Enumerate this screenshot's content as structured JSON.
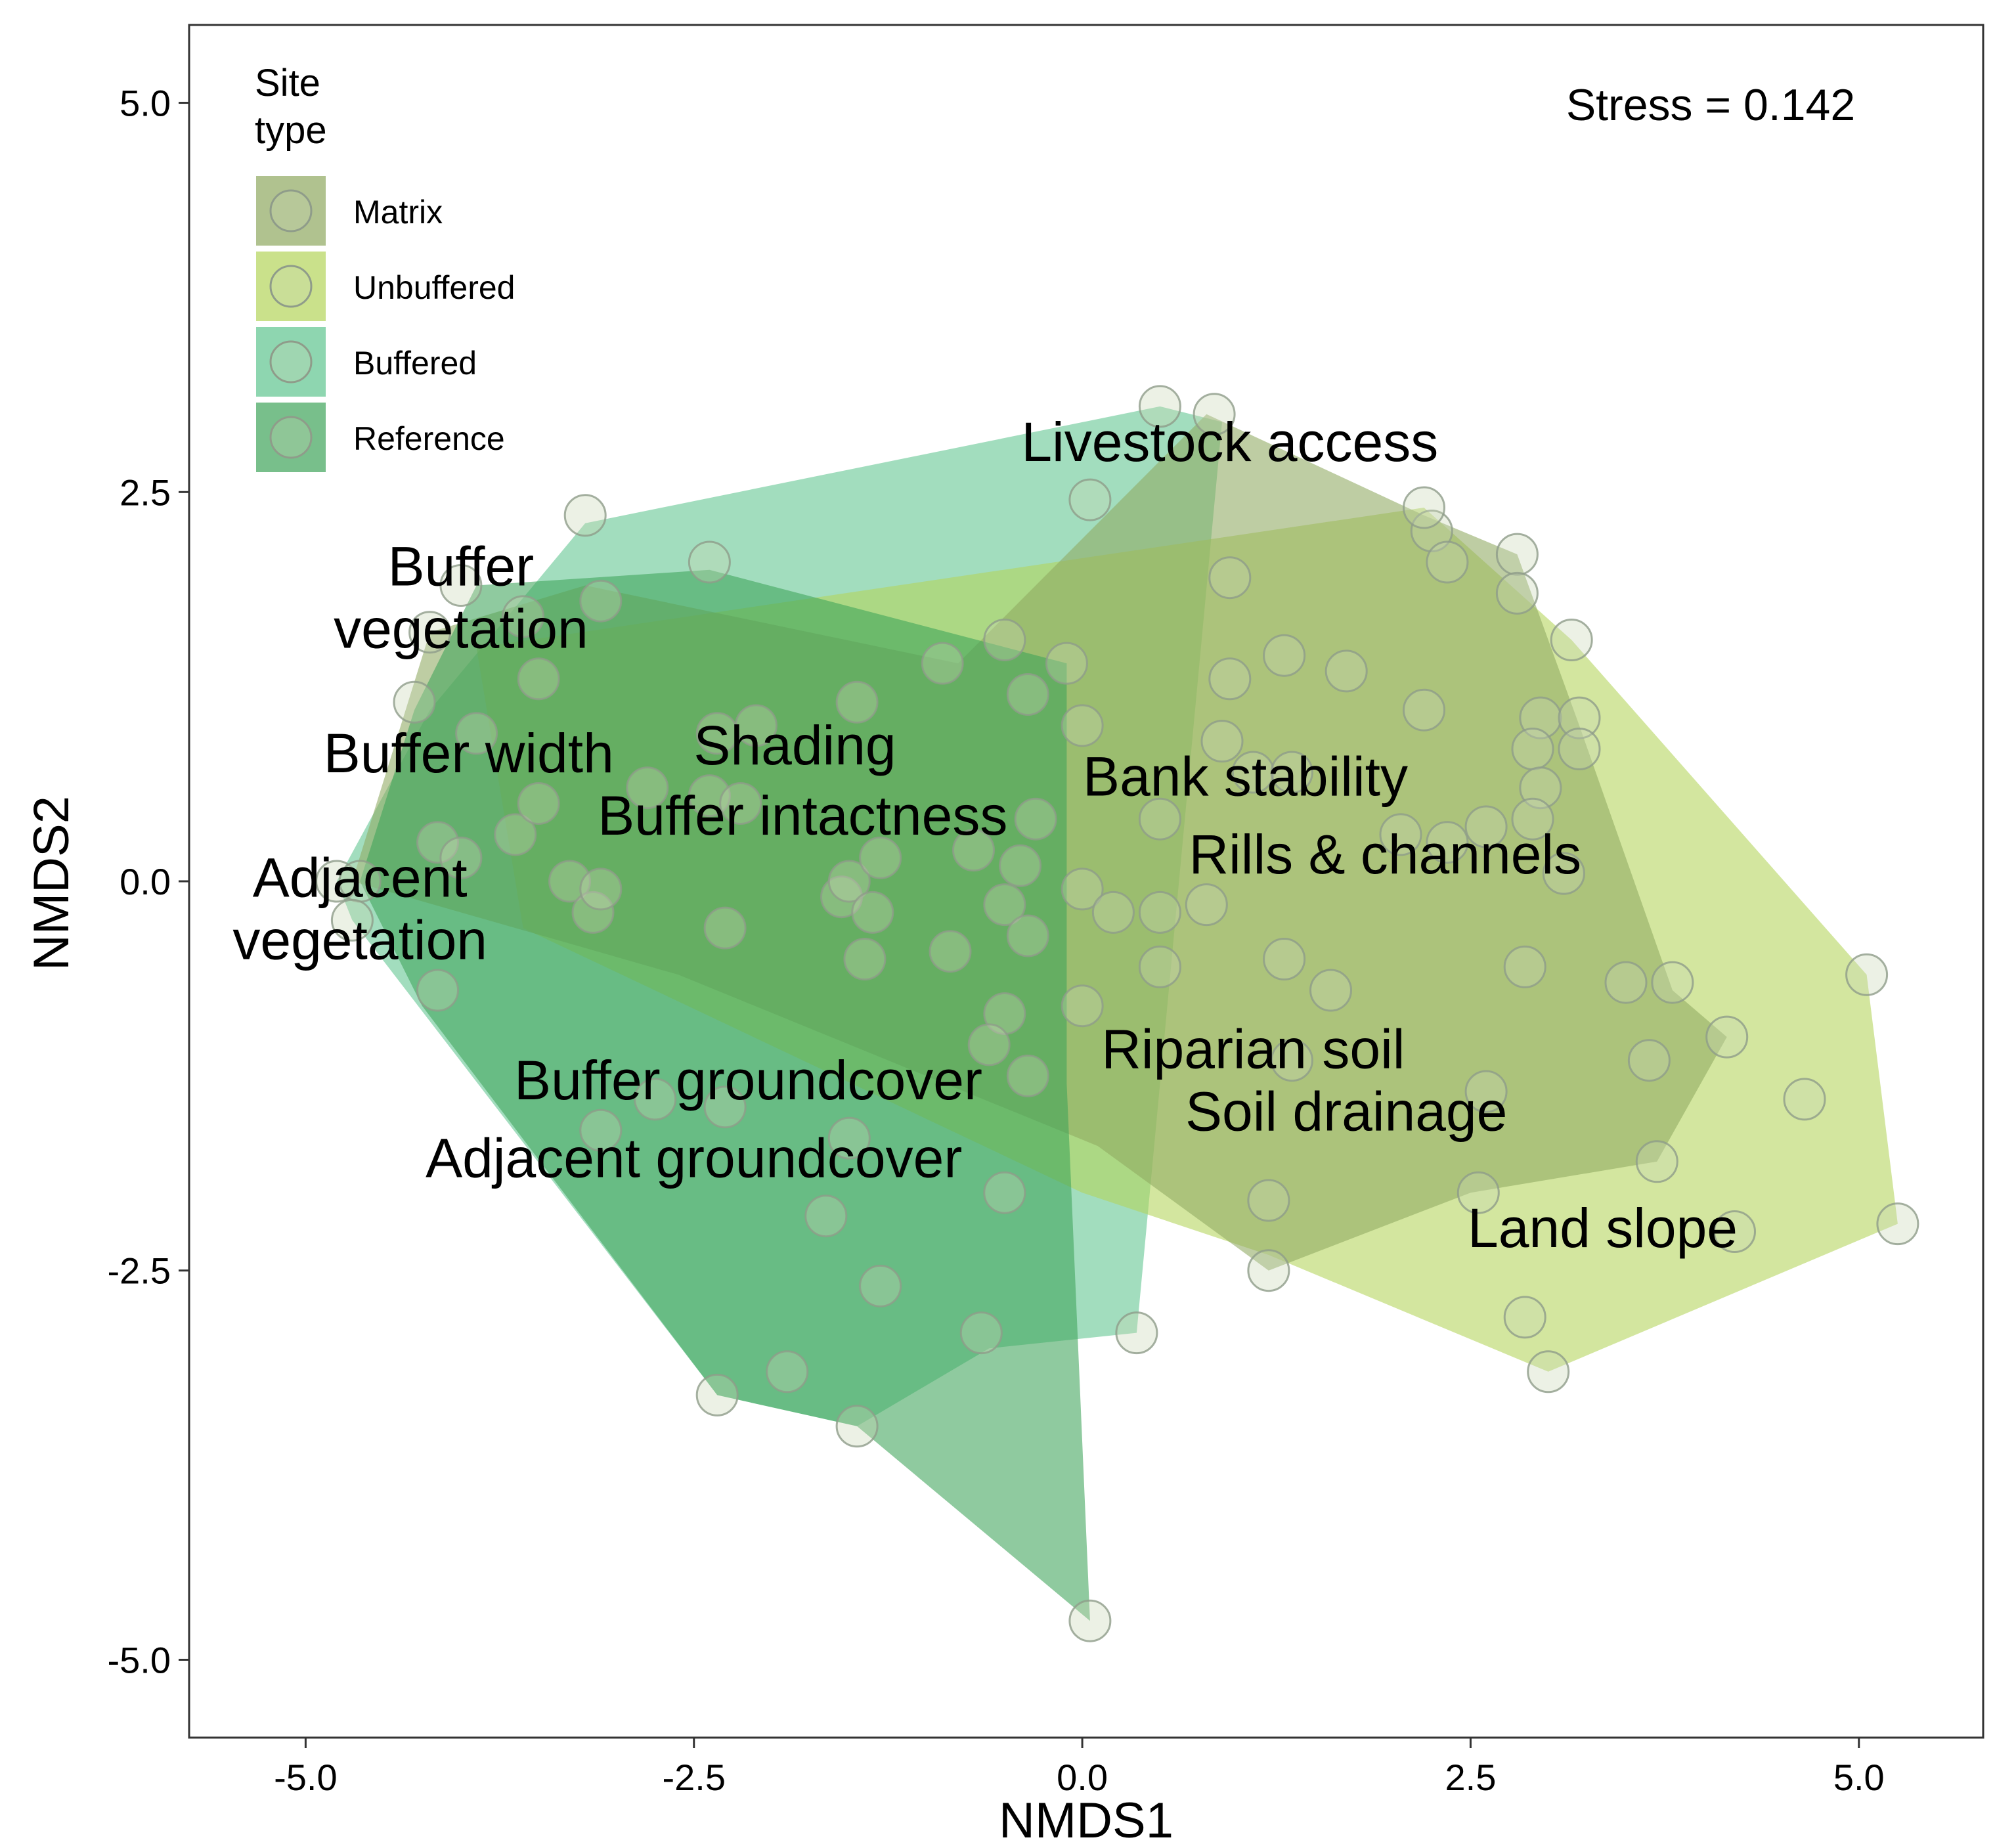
{
  "chart_data": {
    "type": "scatter",
    "title": "",
    "xlabel": "NMDS1",
    "ylabel": "NMDS2",
    "xlim": [
      -5.75,
      5.8
    ],
    "ylim": [
      -5.5,
      5.5
    ],
    "xticks": [
      -5.0,
      -2.5,
      0.0,
      2.5,
      5.0
    ],
    "yticks": [
      5.0,
      2.5,
      0.0,
      -2.5,
      -5.0
    ],
    "x_tick_labels": [
      "-5.0",
      "-2.5",
      "0.0",
      "2.5",
      "5.0"
    ],
    "y_tick_labels": [
      "5.0",
      "2.5",
      "0.0",
      "-2.5",
      "-5.0"
    ],
    "grid": false,
    "stress_label": "Stress = 0.142",
    "legend": {
      "title_line1": "Site",
      "title_line2": "type",
      "position": "top-left",
      "entries": [
        {
          "name": "Matrix",
          "color": "#8fa860"
        },
        {
          "name": "Unbuffered",
          "color": "#b4d45a"
        },
        {
          "name": "Buffered",
          "color": "#5ec48f"
        },
        {
          "name": "Reference",
          "color": "#3ea45a"
        }
      ]
    },
    "series": [
      {
        "name": "Buffered",
        "color": "#5ec48f",
        "hull": [
          [
            -4.8,
            0.0
          ],
          [
            -4.2,
            1.1
          ],
          [
            -3.2,
            2.3
          ],
          [
            0.5,
            3.05
          ],
          [
            0.9,
            2.95
          ],
          [
            0.35,
            -2.9
          ],
          [
            -0.6,
            -3.0
          ],
          [
            -1.45,
            -3.5
          ],
          [
            -2.35,
            -3.3
          ],
          [
            -4.7,
            -0.25
          ]
        ]
      },
      {
        "name": "Unbuffered",
        "color": "#b4d45a",
        "hull": [
          [
            -3.9,
            1.5
          ],
          [
            2.2,
            2.4
          ],
          [
            3.15,
            1.55
          ],
          [
            5.05,
            -0.6
          ],
          [
            5.25,
            -2.2
          ],
          [
            3.0,
            -3.15
          ],
          [
            1.2,
            -2.4
          ],
          [
            0.0,
            -2.0
          ],
          [
            -3.6,
            -0.3
          ]
        ]
      },
      {
        "name": "Matrix",
        "color": "#8fa860",
        "hull": [
          [
            -4.2,
            1.6
          ],
          [
            -3.2,
            1.9
          ],
          [
            -0.8,
            1.4
          ],
          [
            0.8,
            3.0
          ],
          [
            2.2,
            2.35
          ],
          [
            2.8,
            2.1
          ],
          [
            3.2,
            1.0
          ],
          [
            3.8,
            -0.7
          ],
          [
            4.15,
            -1.0
          ],
          [
            3.7,
            -1.8
          ],
          [
            2.5,
            -2.0
          ],
          [
            1.2,
            -2.5
          ],
          [
            0.1,
            -1.7
          ],
          [
            -2.6,
            -0.6
          ],
          [
            -4.7,
            0.0
          ]
        ]
      },
      {
        "name": "Reference",
        "color": "#3ea45a",
        "hull": [
          [
            -3.9,
            1.9
          ],
          [
            -2.4,
            2.0
          ],
          [
            -0.1,
            1.4
          ],
          [
            -0.1,
            -1.3
          ],
          [
            0.05,
            -4.75
          ],
          [
            -1.45,
            -3.5
          ],
          [
            -2.35,
            -3.3
          ],
          [
            -4.25,
            -0.8
          ],
          [
            -4.65,
            0.0
          ],
          [
            -4.3,
            1.1
          ]
        ]
      }
    ],
    "points": [
      [
        0.5,
        3.05
      ],
      [
        0.85,
        3.0
      ],
      [
        -3.2,
        2.35
      ],
      [
        -2.4,
        2.05
      ],
      [
        -3.1,
        1.8
      ],
      [
        -4.0,
        1.9
      ],
      [
        -3.6,
        1.7
      ],
      [
        -4.2,
        1.6
      ],
      [
        -3.5,
        1.3
      ],
      [
        -4.3,
        1.15
      ],
      [
        -3.9,
        0.95
      ],
      [
        -2.35,
        0.95
      ],
      [
        -2.1,
        1.0
      ],
      [
        -1.45,
        1.15
      ],
      [
        -0.9,
        1.4
      ],
      [
        -0.5,
        1.55
      ],
      [
        -0.35,
        1.2
      ],
      [
        -0.1,
        1.4
      ],
      [
        0.0,
        1.0
      ],
      [
        0.05,
        2.45
      ],
      [
        0.95,
        1.95
      ],
      [
        0.95,
        1.3
      ],
      [
        1.3,
        1.45
      ],
      [
        1.7,
        1.35
      ],
      [
        0.9,
        0.9
      ],
      [
        1.1,
        0.7
      ],
      [
        1.35,
        0.7
      ],
      [
        2.25,
        2.25
      ],
      [
        2.35,
        2.05
      ],
      [
        2.2,
        2.4
      ],
      [
        2.8,
        2.1
      ],
      [
        2.8,
        1.85
      ],
      [
        3.15,
        1.55
      ],
      [
        2.2,
        1.1
      ],
      [
        2.95,
        1.05
      ],
      [
        3.2,
        1.05
      ],
      [
        2.9,
        0.85
      ],
      [
        3.2,
        0.85
      ],
      [
        2.95,
        0.6
      ],
      [
        2.9,
        0.4
      ],
      [
        2.6,
        0.35
      ],
      [
        2.35,
        0.25
      ],
      [
        2.05,
        0.3
      ],
      [
        3.1,
        0.05
      ],
      [
        -4.8,
        0.0
      ],
      [
        -4.65,
        0.0
      ],
      [
        -4.7,
        -0.25
      ],
      [
        -4.15,
        0.25
      ],
      [
        -4.0,
        0.15
      ],
      [
        -3.65,
        0.3
      ],
      [
        -3.5,
        0.5
      ],
      [
        -3.3,
        0.0
      ],
      [
        -3.15,
        -0.2
      ],
      [
        -3.1,
        -0.05
      ],
      [
        -2.8,
        0.6
      ],
      [
        -2.4,
        0.55
      ],
      [
        -2.2,
        0.5
      ],
      [
        -2.3,
        -0.3
      ],
      [
        -1.55,
        -0.1
      ],
      [
        -1.5,
        0.0
      ],
      [
        -1.35,
        -0.2
      ],
      [
        -1.3,
        0.15
      ],
      [
        -1.4,
        -0.5
      ],
      [
        -0.85,
        -0.45
      ],
      [
        -0.7,
        0.2
      ],
      [
        -0.5,
        -0.15
      ],
      [
        -0.4,
        0.1
      ],
      [
        -0.35,
        -0.35
      ],
      [
        -0.3,
        0.4
      ],
      [
        0.0,
        -0.05
      ],
      [
        0.2,
        -0.2
      ],
      [
        0.5,
        0.4
      ],
      [
        0.5,
        -0.2
      ],
      [
        0.8,
        -0.15
      ],
      [
        0.5,
        -0.55
      ],
      [
        -4.15,
        -0.7
      ],
      [
        0.0,
        -0.8
      ],
      [
        1.3,
        -0.5
      ],
      [
        1.6,
        -0.7
      ],
      [
        1.35,
        -1.15
      ],
      [
        -0.5,
        -0.85
      ],
      [
        -0.6,
        -1.05
      ],
      [
        -0.35,
        -1.25
      ],
      [
        2.85,
        -0.55
      ],
      [
        3.5,
        -0.65
      ],
      [
        3.8,
        -0.65
      ],
      [
        4.15,
        -1.0
      ],
      [
        3.65,
        -1.15
      ],
      [
        2.6,
        -1.35
      ],
      [
        4.65,
        -1.4
      ],
      [
        5.05,
        -0.6
      ],
      [
        3.7,
        -1.8
      ],
      [
        2.55,
        -2.0
      ],
      [
        1.2,
        -2.05
      ],
      [
        1.2,
        -2.5
      ],
      [
        4.2,
        -2.25
      ],
      [
        5.25,
        -2.2
      ],
      [
        2.85,
        -2.8
      ],
      [
        3.0,
        -3.15
      ],
      [
        -3.1,
        -1.6
      ],
      [
        -2.75,
        -1.4
      ],
      [
        -2.3,
        -1.45
      ],
      [
        -1.5,
        -1.65
      ],
      [
        -1.65,
        -2.15
      ],
      [
        -0.5,
        -2.0
      ],
      [
        -1.3,
        -2.6
      ],
      [
        -0.65,
        -2.9
      ],
      [
        0.35,
        -2.9
      ],
      [
        -1.9,
        -3.15
      ],
      [
        -2.35,
        -3.3
      ],
      [
        -1.45,
        -3.5
      ],
      [
        0.05,
        -4.75
      ]
    ],
    "vector_labels": [
      {
        "text": "Livestock access",
        "x": 0.95,
        "y": 2.7
      },
      {
        "text": "Buffer",
        "x": -4.0,
        "y": 1.9
      },
      {
        "text": "vegetation",
        "x": -4.0,
        "y": 1.5
      },
      {
        "text": "Buffer width",
        "x": -3.95,
        "y": 0.7
      },
      {
        "text": "Shading",
        "x": -1.85,
        "y": 0.75
      },
      {
        "text": "Buffer intactness",
        "x": -1.8,
        "y": 0.3
      },
      {
        "text": "Bank stability",
        "x": 1.05,
        "y": 0.55
      },
      {
        "text": "Rills & channels",
        "x": 1.95,
        "y": 0.05
      },
      {
        "text": "Adjacent",
        "x": -4.65,
        "y": -0.1
      },
      {
        "text": "vegetation",
        "x": -4.65,
        "y": -0.5
      },
      {
        "text": "Riparian soil",
        "x": 1.1,
        "y": -1.2
      },
      {
        "text": "Soil drainage",
        "x": 1.7,
        "y": -1.6
      },
      {
        "text": "Buffer groundcover",
        "x": -2.15,
        "y": -1.4
      },
      {
        "text": "Adjacent groundcover",
        "x": -2.5,
        "y": -1.9
      },
      {
        "text": "Land slope",
        "x": 3.35,
        "y": -2.35
      }
    ]
  }
}
